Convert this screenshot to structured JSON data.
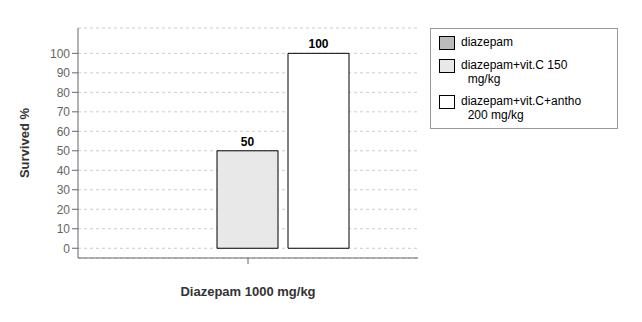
{
  "chart_data": {
    "type": "bar",
    "xlabel": "Diazepam 1000 mg/kg",
    "ylabel": "Survived %",
    "categories": [
      null
    ],
    "series": [
      {
        "name": "diazepam",
        "color": "#bbbbbb",
        "values": [
          0
        ]
      },
      {
        "name": "diazepam+vit.C 150\n  mg/kg",
        "color": "#e8e8e8",
        "values": [
          50
        ]
      },
      {
        "name": "diazepam+vit.C+antho\n  200 mg/kg",
        "color": "#ffffff",
        "values": [
          100
        ]
      }
    ],
    "ylim": [
      -5,
      113
    ],
    "yticks": [
      0,
      10,
      20,
      30,
      40,
      50,
      60,
      70,
      80,
      90,
      100
    ],
    "grid": true,
    "legend": "right",
    "data_labels": true
  }
}
